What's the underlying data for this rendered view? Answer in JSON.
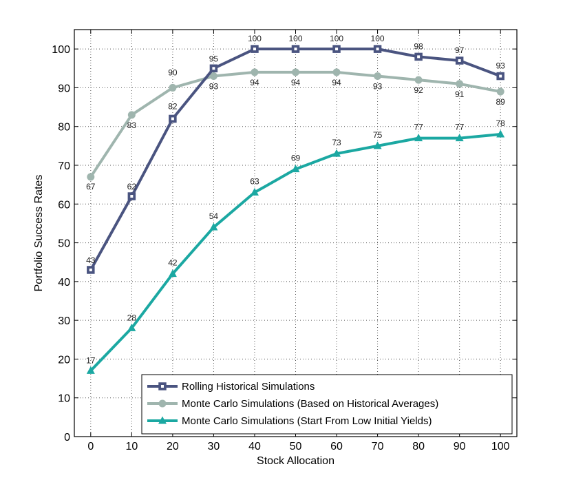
{
  "chart_data": {
    "type": "line",
    "title": "",
    "xlabel": "Stock Allocation",
    "ylabel": "Portfolio Success Rates",
    "x": [
      0,
      10,
      20,
      30,
      40,
      50,
      60,
      70,
      80,
      90,
      100
    ],
    "xlim": [
      -4,
      104
    ],
    "ylim": [
      0,
      105
    ],
    "xticks": [
      0,
      10,
      20,
      30,
      40,
      50,
      60,
      70,
      80,
      90,
      100
    ],
    "yticks": [
      0,
      10,
      20,
      30,
      40,
      50,
      60,
      70,
      80,
      90,
      100
    ],
    "grid": true,
    "legend_position": "bottom-right",
    "series": [
      {
        "name": "Rolling Historical Simulations",
        "values": [
          43,
          62,
          82,
          95,
          100,
          100,
          100,
          100,
          98,
          97,
          93
        ],
        "labels": [
          "43",
          "62",
          "82",
          "95",
          "100",
          "100",
          "100",
          "100",
          "98",
          "97",
          "93"
        ],
        "color": "#4a5480",
        "marker": "square"
      },
      {
        "name": "Monte Carlo Simulations (Based on Historical Averages)",
        "values": [
          67,
          83,
          90,
          93,
          94,
          94,
          94,
          93,
          92,
          91,
          89
        ],
        "labels": [
          "67",
          "83",
          "90",
          "93",
          "94",
          "94",
          "94",
          "93",
          "92",
          "91",
          "89"
        ],
        "color": "#9fb5ae",
        "marker": "circle"
      },
      {
        "name": "Monte Carlo Simulations (Start From Low Initial Yields)",
        "values": [
          17,
          28,
          42,
          54,
          63,
          69,
          73,
          75,
          77,
          77,
          78
        ],
        "labels": [
          "17",
          "28",
          "42",
          "54",
          "63",
          "69",
          "73",
          "75",
          "77",
          "77",
          "78"
        ],
        "color": "#1ba8a2",
        "marker": "triangle"
      }
    ]
  }
}
